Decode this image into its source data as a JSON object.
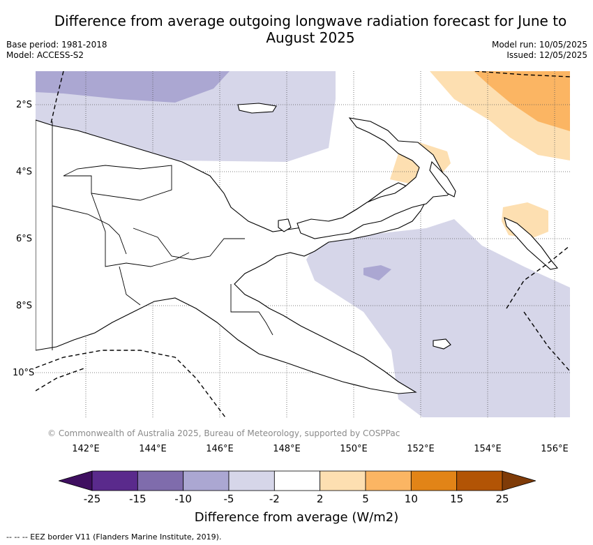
{
  "title": "Difference from average outgoing longwave radiation forecast for June to August 2025",
  "meta_left": [
    "Base period: 1981-2018",
    "Model: ACCESS-S2"
  ],
  "meta_right": [
    "Model run: 10/05/2025",
    "Issued: 12/05/2025"
  ],
  "latitude_labels": [
    "2°S",
    "4°S",
    "6°S",
    "8°S",
    "10°S"
  ],
  "longitude_labels": [
    "142°E",
    "144°E",
    "146°E",
    "148°E",
    "150°E",
    "152°E",
    "154°E",
    "156°E"
  ],
  "copyright": "© Commonwealth of Australia 2025, Bureau of Meteorology, supported by COSPPac",
  "colorbar": {
    "label": "Difference from average (W/m2)",
    "ticks": [
      "-25",
      "-15",
      "-10",
      "-5",
      "-2",
      "2",
      "5",
      "10",
      "15",
      "25"
    ],
    "colors": [
      "#3f0f60",
      "#5a2a8c",
      "#7f6cac",
      "#aba7d2",
      "#d6d6e9",
      "#ffffff",
      "#fddfb1",
      "#fbb563",
      "#e28417",
      "#b25405",
      "#7f3b08"
    ]
  },
  "footnote": "-- -- -- EEZ border V11 (Flanders Marine Institute, 2019)."
}
